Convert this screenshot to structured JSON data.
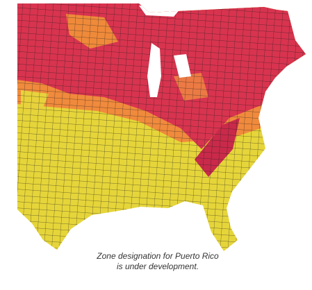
{
  "caption": {
    "lines": [
      "Zone designation for Puerto Rico",
      "is under development."
    ]
  }
}
